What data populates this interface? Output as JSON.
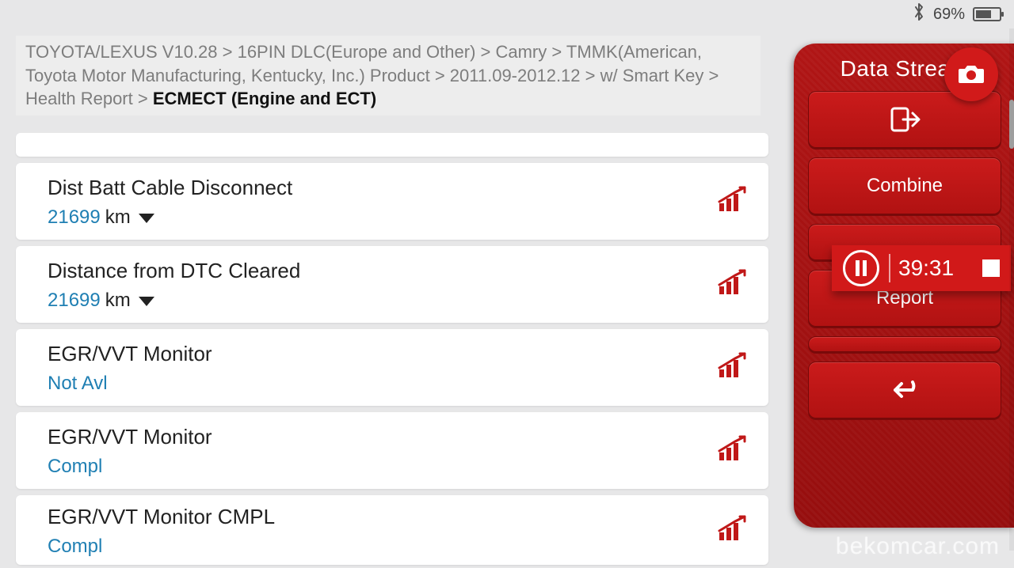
{
  "status_bar": {
    "battery_percent_label": "69%",
    "battery_fill_pct": 69,
    "bluetooth_icon": "bluetooth-icon"
  },
  "breadcrumb": {
    "parts": [
      "TOYOTA/LEXUS V10.28",
      "16PIN DLC(Europe and Other)",
      "Camry",
      "TMMK(American, Toyota Motor Manufacturing, Kentucky, Inc.) Product",
      "2011.09-2012.12",
      "w/ Smart Key",
      "Health Report"
    ],
    "current": "ECMECT (Engine and ECT)"
  },
  "datastream_items": [
    {
      "title": "Dist Batt Cable Disconnect",
      "value": "21699",
      "unit": "km",
      "has_caret": true
    },
    {
      "title": "Distance from DTC Cleared",
      "value": "21699",
      "unit": "km",
      "has_caret": true
    },
    {
      "title": "EGR/VVT Monitor",
      "value": "Not Avl",
      "unit": "",
      "has_caret": false
    },
    {
      "title": "EGR/VVT Monitor",
      "value": "Compl",
      "unit": "",
      "has_caret": false
    },
    {
      "title": "EGR/VVT Monitor CMPL",
      "value": "Compl",
      "unit": "",
      "has_caret": false
    }
  ],
  "side_panel": {
    "title": "Data Stream",
    "buttons": {
      "exit_icon": "exit-icon",
      "combine": "Combine",
      "report": "Report",
      "back_icon": "back-icon"
    }
  },
  "recorder": {
    "time": "39:31"
  },
  "watermark": "bekomcar.com",
  "colors": {
    "brand_red": "#c01818",
    "panel_red_top": "#b01515",
    "panel_red_bottom": "#960e0e",
    "link_blue": "#1f7fb3",
    "bg_grey": "#e7e7e8",
    "text_grey": "#7d7d7d"
  }
}
